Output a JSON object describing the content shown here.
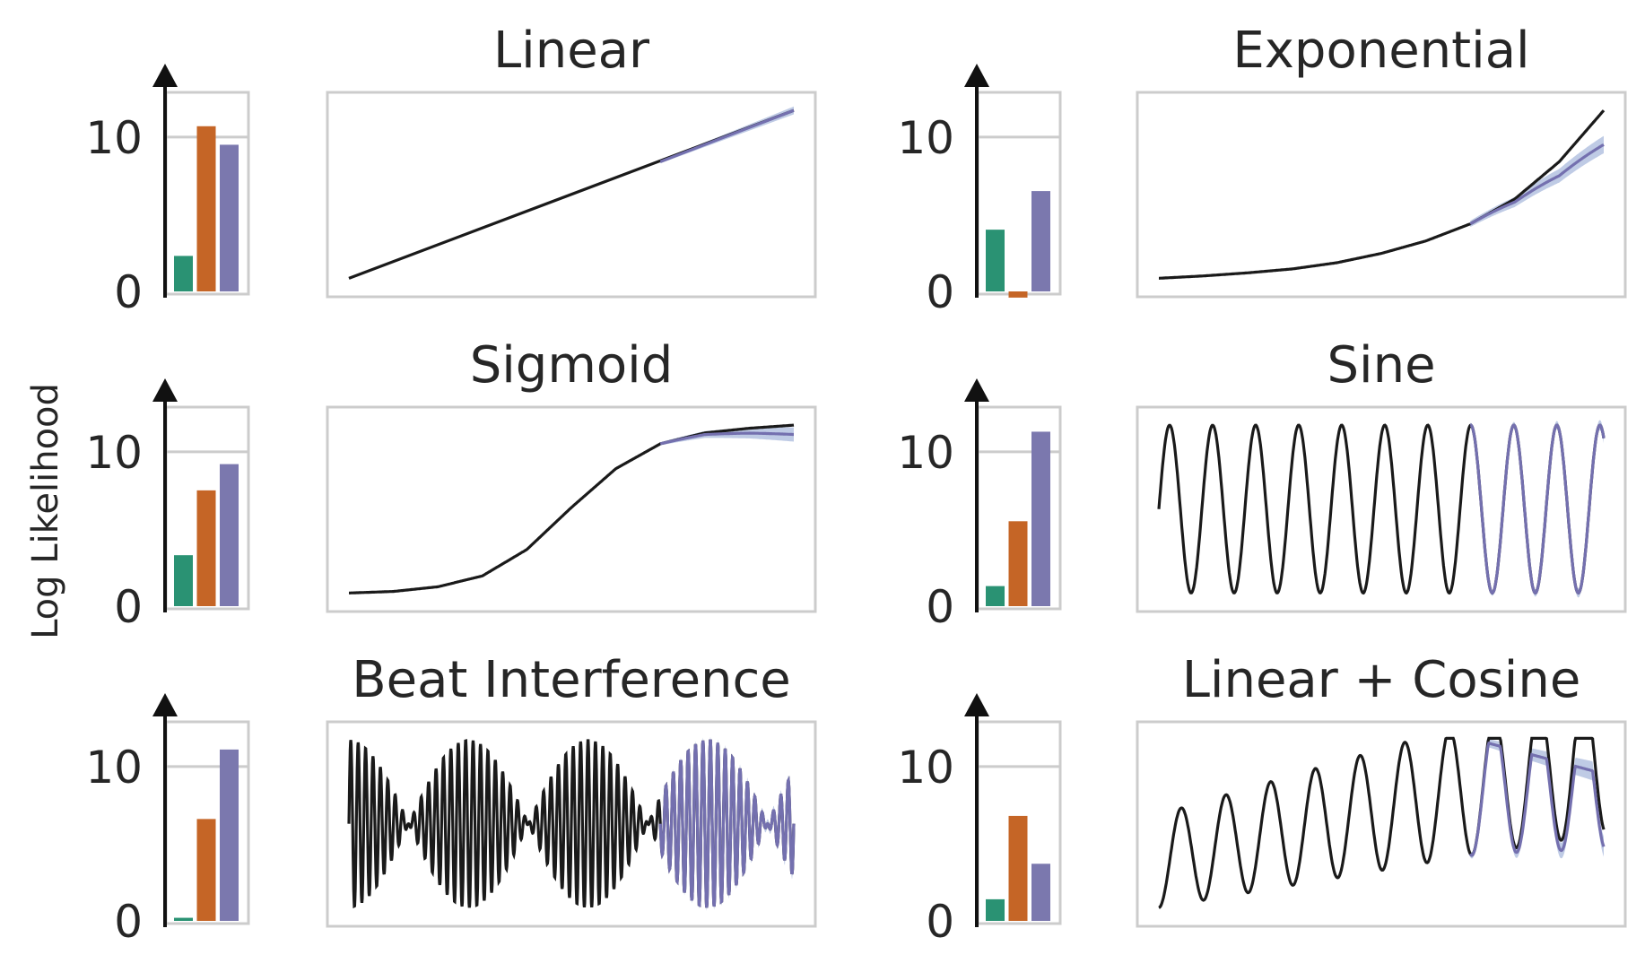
{
  "figure": {
    "ylabel": "Log Likelihood",
    "colors": {
      "green": "#2a9273",
      "orange": "#c56526",
      "purple": "#7b78ae",
      "truth": "#1a1a1a",
      "forecast": "#7470af",
      "band": "#a9b9dc",
      "frame": "#cccccc",
      "grid": "#cccccc"
    }
  },
  "chart_data": [
    {
      "type": "bar",
      "panel": "linear",
      "title": "",
      "categories": [
        "",
        "",
        ""
      ],
      "values": [
        2.3,
        10.7,
        9.5
      ],
      "ylim": [
        0,
        11.5
      ],
      "yticks": [
        "0",
        "10"
      ],
      "ytick_values": [
        0,
        10
      ],
      "grid": true
    },
    {
      "type": "line",
      "panel": "linear",
      "title": "Linear",
      "x": [
        0,
        1
      ],
      "truth": {
        "values": [
          0.5,
          11.3
        ]
      },
      "forecast_start": 0.7,
      "forecast": {
        "values": [
          8.0,
          11.3
        ]
      },
      "ylim": [
        0,
        12
      ]
    },
    {
      "type": "bar",
      "panel": "exponential",
      "title": "",
      "categories": [
        "",
        "",
        ""
      ],
      "values": [
        4.0,
        -0.4,
        6.5
      ],
      "ylim": [
        0,
        11.5
      ],
      "yticks": [
        "0",
        "10"
      ],
      "ytick_values": [
        0,
        10
      ],
      "grid": true
    },
    {
      "type": "line",
      "panel": "exponential",
      "title": "Exponential",
      "x": [
        0,
        0.1,
        0.2,
        0.3,
        0.4,
        0.5,
        0.6,
        0.7,
        0.8,
        0.9,
        1.0
      ],
      "truth": {
        "values": [
          0.5,
          0.65,
          0.85,
          1.1,
          1.5,
          2.1,
          2.9,
          4.0,
          5.6,
          8.0,
          11.3
        ]
      },
      "forecast_start": 0.7,
      "forecast": {
        "values": [
          4.0,
          5.5,
          7.7,
          9.7
        ]
      },
      "ylim": [
        0,
        12
      ]
    },
    {
      "type": "bar",
      "panel": "sigmoid",
      "title": "",
      "categories": [
        "",
        "",
        ""
      ],
      "values": [
        3.3,
        7.5,
        9.2
      ],
      "ylim": [
        0,
        11.5
      ],
      "yticks": [
        "0",
        "10"
      ],
      "ytick_values": [
        0,
        10
      ],
      "grid": true
    },
    {
      "type": "line",
      "panel": "sigmoid",
      "title": "Sigmoid",
      "x": [
        0,
        0.1,
        0.2,
        0.3,
        0.4,
        0.5,
        0.6,
        0.7,
        0.8,
        0.9,
        1.0
      ],
      "truth": {
        "values": [
          0.5,
          0.6,
          0.9,
          1.6,
          3.3,
          6.0,
          8.5,
          10.1,
          10.8,
          11.1,
          11.3
        ]
      },
      "forecast_start": 0.7,
      "forecast": {
        "values": [
          10.1,
          10.6,
          10.8,
          10.7
        ]
      },
      "ylim": [
        0,
        12
      ]
    },
    {
      "type": "bar",
      "panel": "sine",
      "title": "",
      "categories": [
        "",
        "",
        ""
      ],
      "values": [
        1.3,
        5.5,
        11.3
      ],
      "ylim": [
        0,
        11.5
      ],
      "yticks": [
        "0",
        "10"
      ],
      "ytick_values": [
        0,
        10
      ],
      "grid": true
    },
    {
      "type": "line",
      "panel": "sine",
      "title": "Sine",
      "function": "sine",
      "cycles": 11,
      "truth": {
        "values": [
          5.9,
          11.3,
          0.5
        ]
      },
      "forecast_start": 0.7,
      "ylim": [
        0,
        12
      ]
    },
    {
      "type": "bar",
      "panel": "beat",
      "title": "",
      "categories": [
        "",
        "",
        ""
      ],
      "values": [
        0.2,
        6.6,
        11.1
      ],
      "ylim": [
        0,
        11.5
      ],
      "yticks": [
        "0",
        "10"
      ],
      "ytick_values": [
        0,
        10
      ],
      "grid": true
    },
    {
      "type": "line",
      "panel": "beat",
      "title": "Beat Interference",
      "function": "beat",
      "carrier_cycles": 60,
      "envelope_cycles": 4,
      "truth": {
        "values": [
          0.5,
          11.3
        ]
      },
      "forecast_start": 0.7,
      "ylim": [
        0,
        12
      ]
    },
    {
      "type": "bar",
      "panel": "linear-cosine",
      "title": "",
      "categories": [
        "",
        "",
        ""
      ],
      "values": [
        1.4,
        6.8,
        3.7
      ],
      "ylim": [
        0,
        11.5
      ],
      "yticks": [
        "0",
        "10"
      ],
      "ytick_values": [
        0,
        10
      ],
      "grid": true
    },
    {
      "type": "line",
      "panel": "linear-cosine",
      "title": "Linear + Cosine",
      "function": "linear-cosine",
      "cycles": 10,
      "truth": {
        "values": [
          0.5,
          11.3
        ]
      },
      "forecast_start": 0.7,
      "ylim": [
        0,
        12
      ]
    }
  ]
}
